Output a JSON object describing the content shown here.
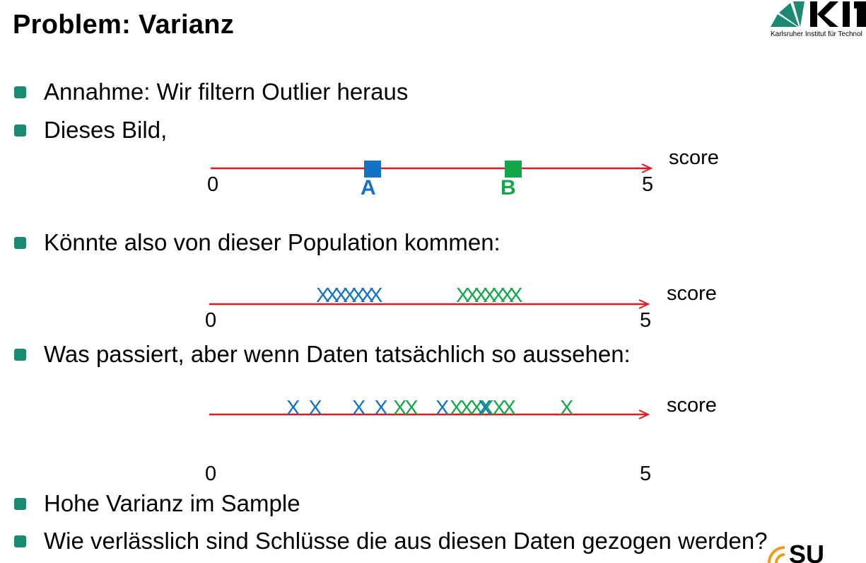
{
  "slide": {
    "title": "Problem: Varianz",
    "logo_caption": "Karlsruher Institut für Technol",
    "bullets": [
      "Annahme: Wir filtern Outlier heraus",
      "Dieses Bild,",
      "Könnte also von dieser Population kommen:",
      "Was passiert, aber wenn Daten tatsächlich so aussehen:",
      "Hohe Varianz im Sample",
      "Wie verlässlich sind Schlüsse die aus diesen Daten gezogen werden?"
    ]
  },
  "axes": [
    {
      "start_label": "0",
      "end_label": "5",
      "axis_label": "score"
    },
    {
      "start_label": "0",
      "end_label": "5",
      "axis_label": "score"
    },
    {
      "start_label": "0",
      "end_label": "5",
      "axis_label": "score"
    }
  ],
  "markers": [
    {
      "label": "A",
      "color": "#1272c4",
      "score": 1.9
    },
    {
      "label": "B",
      "color": "#12a84a",
      "score": 3.4
    }
  ],
  "population_text": {
    "blue": "X XXXXXX",
    "green": "X XXXXXX"
  },
  "sample_text": {
    "blue_1": "X X",
    "blue_2": "X X",
    "green_1": "XX",
    "blue_3": "X",
    "green_2": "XXXX XX",
    "blue_4": "X",
    "green_3": "X"
  },
  "colors": {
    "axis": "#e8171f",
    "blue": "#1272c4",
    "green": "#12a84a",
    "bullet": "#1c8a72"
  }
}
